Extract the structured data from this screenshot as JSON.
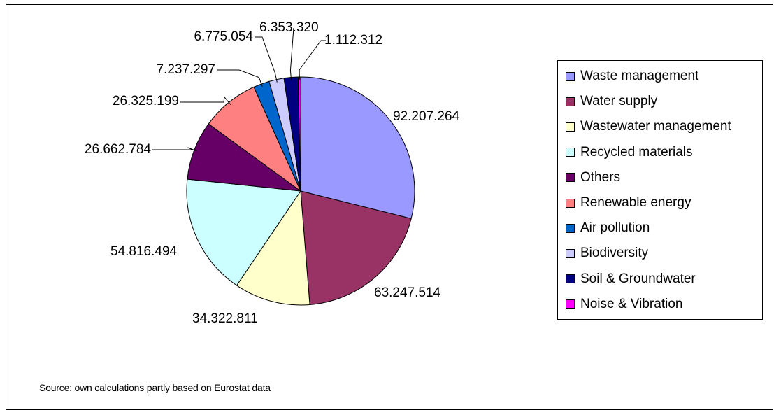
{
  "chart_data": {
    "type": "pie",
    "title": "",
    "categories": [
      "Waste management",
      "Water supply",
      "Wastewater management",
      "Recycled materials",
      "Others",
      "Renewable energy",
      "Air pollution",
      "Biodiversity",
      "Soil & Groundwater",
      "Noise & Vibration"
    ],
    "values": [
      92207264,
      63247514,
      34322811,
      54816494,
      26662784,
      26325199,
      7237297,
      6775054,
      6353320,
      1112312
    ],
    "value_labels": [
      "92.207.264",
      "63.247.514",
      "34.322.811",
      "54.816.494",
      "26.662.784",
      "26.325.199",
      "7.237.297",
      "6.775.054",
      "6.353.320",
      "1.112.312"
    ],
    "colors": [
      "#9999ff",
      "#993366",
      "#ffffcc",
      "#ccffff",
      "#660066",
      "#ff8080",
      "#0066cc",
      "#ccccff",
      "#000080",
      "#ff00ff"
    ],
    "legend_position": "right",
    "start_angle": "12 o'clock, clockwise"
  },
  "source_text": "Source:  own calculations partly based on Eurostat data"
}
